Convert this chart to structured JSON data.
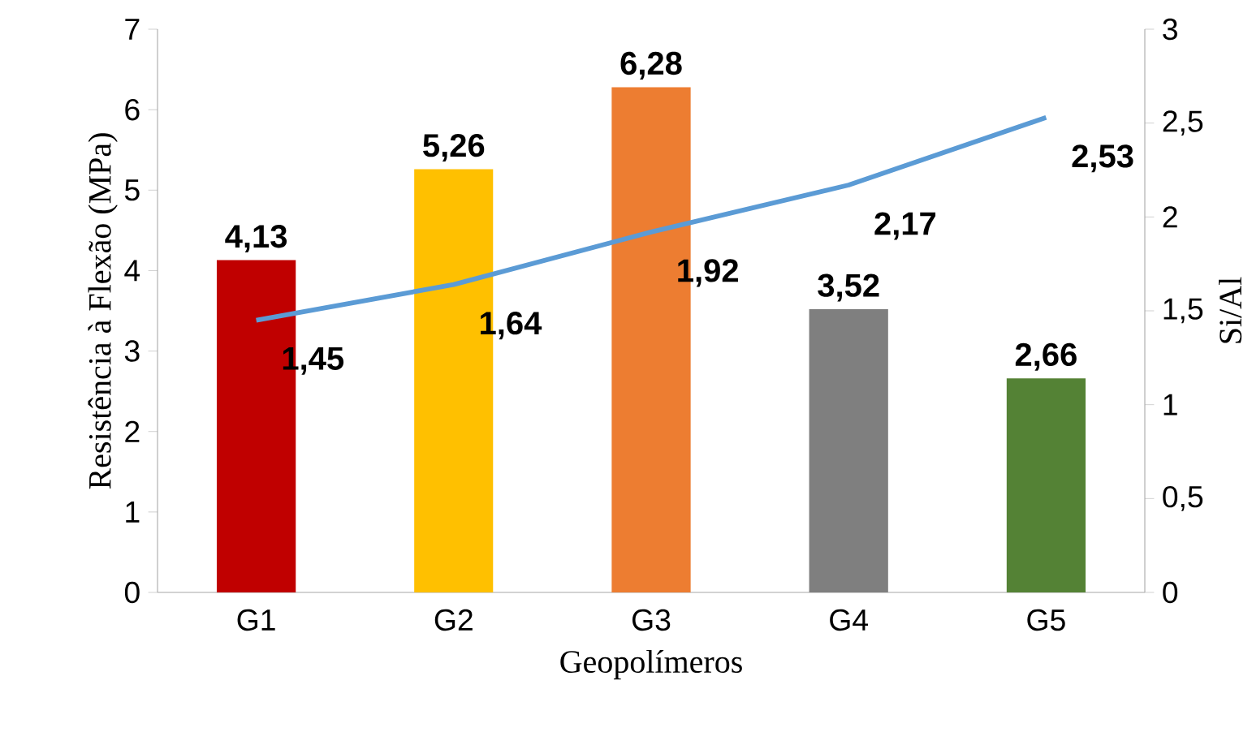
{
  "chart_data": {
    "type": "bar",
    "xlabel": "Geopolímeros",
    "ylabel": "Resistência à Flexão (MPa)",
    "y2label": "Si/Al",
    "categories": [
      "G1",
      "G2",
      "G3",
      "G4",
      "G5"
    ],
    "ylim": [
      0,
      7
    ],
    "yticks": [
      0,
      1,
      2,
      3,
      4,
      5,
      6,
      7
    ],
    "y2lim": [
      0,
      3
    ],
    "y2ticks": [
      0,
      {
        "value": 0.5,
        "label": "0,5"
      },
      1,
      {
        "value": 1.5,
        "label": "1,5"
      },
      2,
      {
        "value": 2.5,
        "label": "2,5"
      },
      3
    ],
    "series": [
      {
        "colors": [
          "#c00000",
          "#ffc000",
          "#ed7d31",
          "#7f7f7f",
          "#548235"
        ],
        "values": [
          4.13,
          5.26,
          6.28,
          3.52,
          2.66
        ],
        "value_labels": [
          "4,13",
          "5,26",
          "6,28",
          "3,52",
          "2,66"
        ]
      },
      {
        "type": "line",
        "axis": "y2",
        "color": "#5b9bd5",
        "values": [
          1.45,
          1.64,
          1.92,
          2.17,
          2.53
        ],
        "value_labels": [
          "1,45",
          "1,64",
          "1,92",
          "2,17",
          "2,53"
        ]
      }
    ]
  }
}
